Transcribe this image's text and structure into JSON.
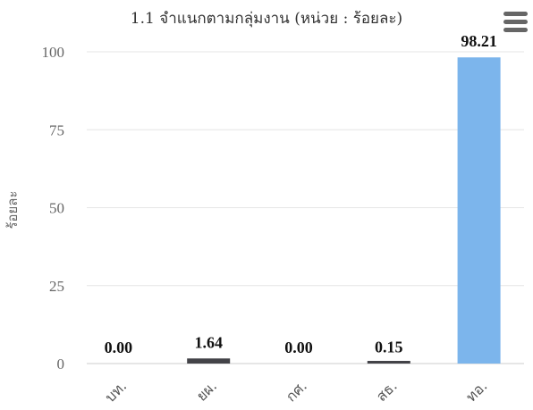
{
  "chart_data": {
    "type": "bar",
    "title": "1.1 จำแนกตามกลุ่มงาน (หน่วย : ร้อยละ)",
    "ylabel": "ร้อยละ",
    "xlabel": "",
    "categories": [
      "บท.",
      "ยผ.",
      "กศ.",
      "สธ.",
      "ทอ."
    ],
    "values": [
      0.0,
      1.64,
      0.0,
      0.15,
      98.21
    ],
    "value_labels": [
      "0.00",
      "1.64",
      "0.00",
      "0.15",
      "98.21"
    ],
    "ylim": [
      0,
      100
    ],
    "yticks": [
      0,
      25,
      50,
      75,
      100
    ],
    "grid": true,
    "legend": "none",
    "bar_color": "#7cb5ec",
    "small_bar_color": "#434348"
  },
  "menu": {
    "icon": "hamburger-menu-icon"
  }
}
